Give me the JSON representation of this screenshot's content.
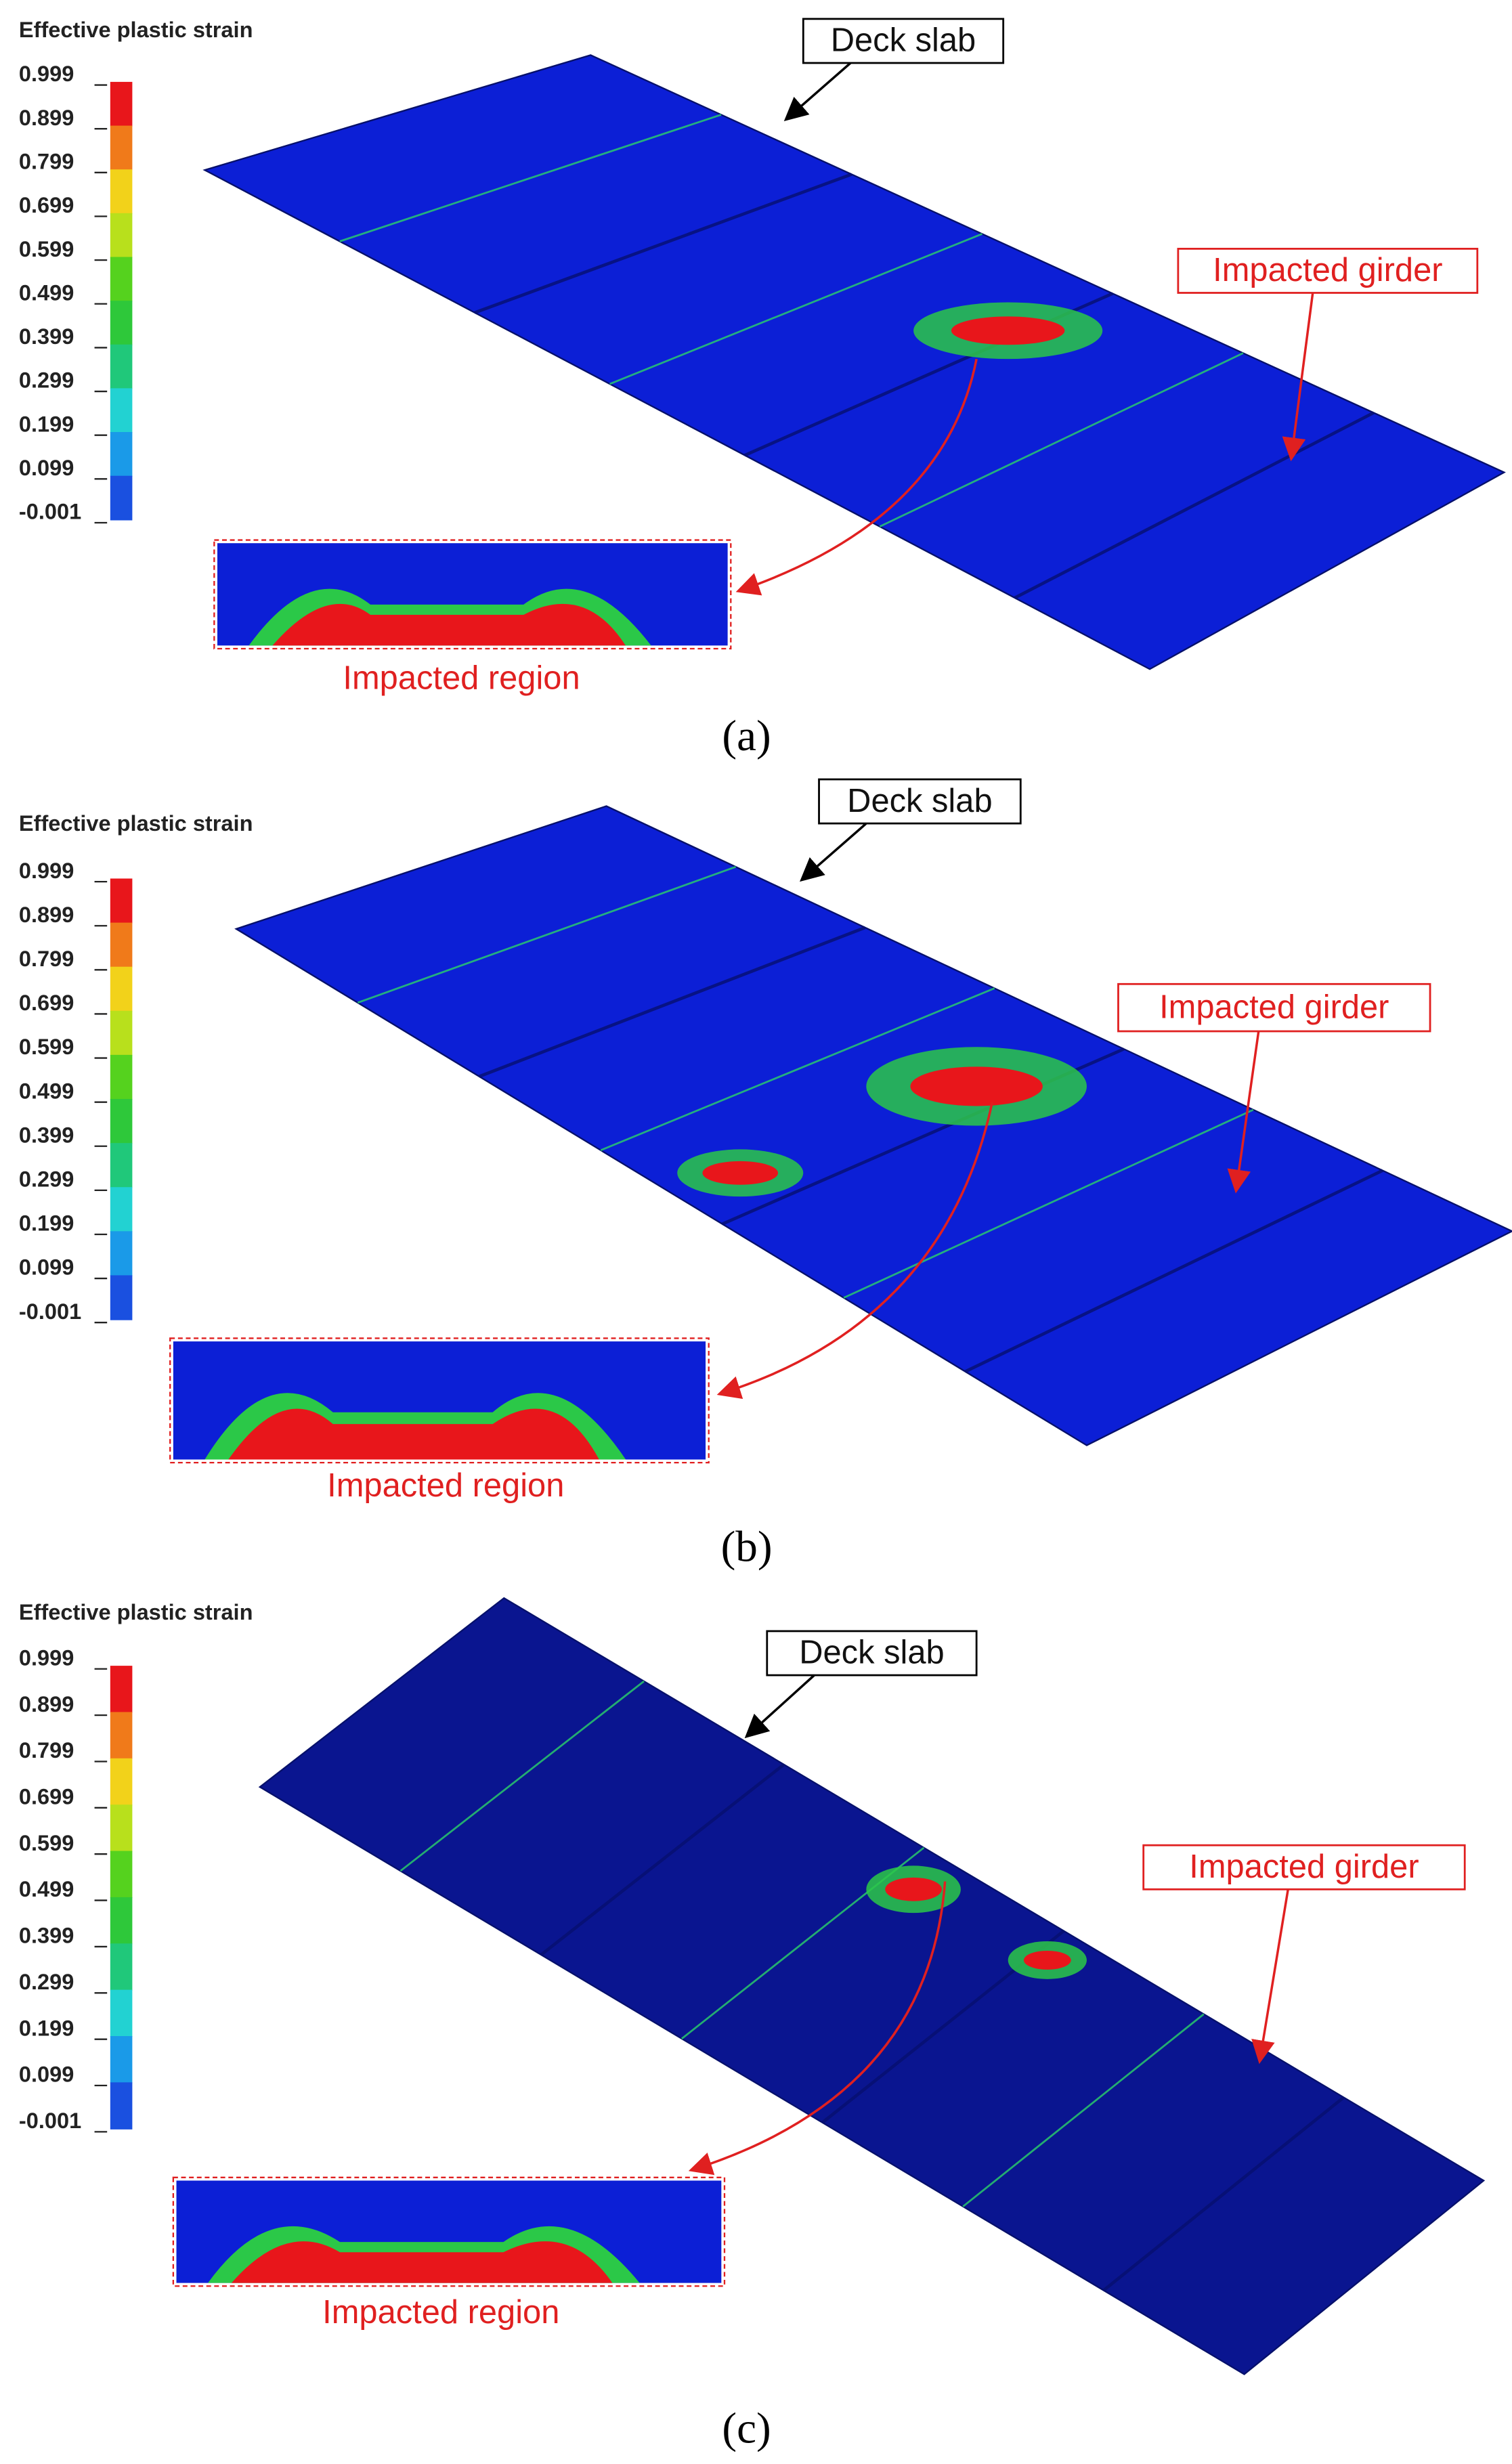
{
  "panels": [
    {
      "label": "(a)",
      "legend": {
        "title": "Effective plastic strain",
        "ticks": [
          "0.999",
          "0.899",
          "0.799",
          "0.699",
          "0.599",
          "0.499",
          "0.399",
          "0.299",
          "0.199",
          "0.099",
          "-0.001"
        ]
      },
      "deck_slab": "Deck slab",
      "impacted_girder": "Impacted girder",
      "impacted_region": "Impacted region"
    },
    {
      "label": "(b)",
      "legend": {
        "title": "Effective plastic strain",
        "ticks": [
          "0.999",
          "0.899",
          "0.799",
          "0.699",
          "0.599",
          "0.499",
          "0.399",
          "0.299",
          "0.199",
          "0.099",
          "-0.001"
        ]
      },
      "deck_slab": "Deck slab",
      "impacted_girder": "Impacted girder",
      "impacted_region": "Impacted region"
    },
    {
      "label": "(c)",
      "legend": {
        "title": "Effective plastic strain",
        "ticks": [
          "0.999",
          "0.899",
          "0.799",
          "0.699",
          "0.599",
          "0.499",
          "0.399",
          "0.299",
          "0.199",
          "0.099",
          "-0.001"
        ]
      },
      "deck_slab": "Deck slab",
      "impacted_girder": "Impacted girder",
      "impacted_region": "Impacted region"
    }
  ]
}
